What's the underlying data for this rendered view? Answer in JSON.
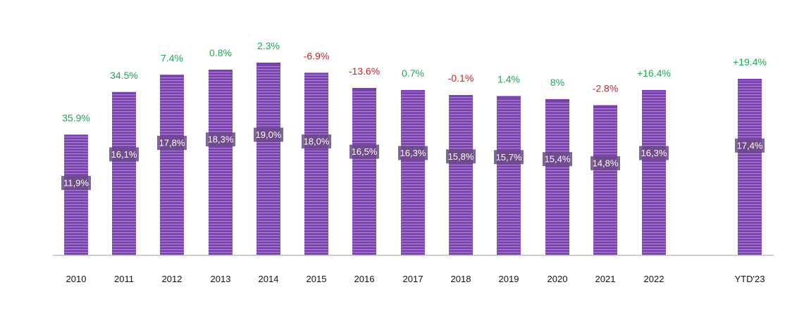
{
  "chart_data": {
    "type": "bar",
    "categories": [
      "2010",
      "2011",
      "2012",
      "2013",
      "2014",
      "2015",
      "2016",
      "2017",
      "2018",
      "2019",
      "2020",
      "2021",
      "2022",
      "YTD'23"
    ],
    "series": [
      {
        "values": [
          11.9,
          16.1,
          17.8,
          18.3,
          19.0,
          18.0,
          16.5,
          16.3,
          15.8,
          15.7,
          15.4,
          14.8,
          16.3,
          17.4
        ],
        "value_labels": [
          "11,9%",
          "16,1%",
          "17,8%",
          "18,3%",
          "19,0%",
          "18,0%",
          "16,5%",
          "16,3%",
          "15,8%",
          "15,7%",
          "15,4%",
          "14,8%",
          "16,3%",
          "17,4%"
        ],
        "growth_labels": [
          "35.9%",
          "34.5%",
          "7.4%",
          "0.8%",
          "2.3%",
          "-6.9%",
          "-13.6%",
          "0.7%",
          "-0.1%",
          "1.4%",
          "8%",
          "-2.8%",
          "+16.4%",
          "+19.4%"
        ]
      }
    ],
    "ylim": [
      0,
      19.0
    ],
    "grid": false,
    "legend": "none",
    "colors": {
      "bar": "#7b3fb3",
      "bar_stripe": "#a77ed0",
      "value_box": "#6b4a86",
      "positive": "#1aaa55",
      "negative": "#cc1f2a",
      "axis": "#bfbfbf"
    }
  }
}
